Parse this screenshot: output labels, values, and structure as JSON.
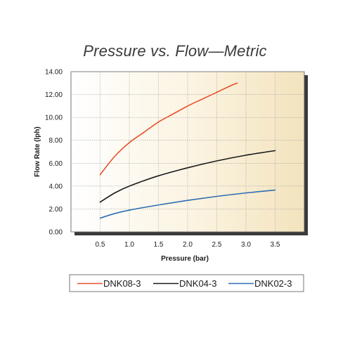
{
  "chart_data": {
    "type": "line",
    "title": "Pressure vs. Flow—Metric",
    "xlabel": "Pressure (bar)",
    "ylabel": "Flow Rate (lph)",
    "xlim": [
      0,
      4.0
    ],
    "ylim": [
      0,
      14
    ],
    "x_ticks": [
      "0.5",
      "1.0",
      "1.5",
      "2.0",
      "2.5",
      "3.0",
      "3.5"
    ],
    "x_tick_values": [
      0.5,
      1.0,
      1.5,
      2.0,
      2.5,
      3.0,
      3.5
    ],
    "y_ticks": [
      "0.00",
      "2.00",
      "4.00",
      "6.00",
      "8.00",
      "10.00",
      "12.00",
      "14.00"
    ],
    "y_tick_values": [
      0,
      2,
      4,
      6,
      8,
      10,
      12,
      14
    ],
    "grid": true,
    "legend_position": "bottom",
    "series": [
      {
        "name": "DNK08-3",
        "color": "#e8502a",
        "x": [
          0.5,
          0.75,
          1.0,
          1.25,
          1.5,
          1.75,
          2.0,
          2.25,
          2.5,
          2.75,
          2.85
        ],
        "y": [
          5.0,
          6.6,
          7.8,
          8.7,
          9.6,
          10.3,
          11.0,
          11.6,
          12.2,
          12.8,
          13.0
        ]
      },
      {
        "name": "DNK04-3",
        "color": "#1a1a1a",
        "x": [
          0.5,
          0.75,
          1.0,
          1.5,
          2.0,
          2.5,
          3.0,
          3.5
        ],
        "y": [
          2.6,
          3.4,
          4.0,
          4.9,
          5.6,
          6.2,
          6.7,
          7.1
        ]
      },
      {
        "name": "DNK02-3",
        "color": "#2e6db4",
        "x": [
          0.5,
          0.75,
          1.0,
          1.5,
          2.0,
          2.5,
          3.0,
          3.5
        ],
        "y": [
          1.2,
          1.6,
          1.9,
          2.35,
          2.75,
          3.1,
          3.4,
          3.65
        ]
      }
    ]
  },
  "colors": {
    "grid": "#9e9e9e",
    "plot_gradient_start": "#ffffff",
    "plot_gradient_end": "#f3e3bd",
    "shadow": "#3a3a3a"
  }
}
